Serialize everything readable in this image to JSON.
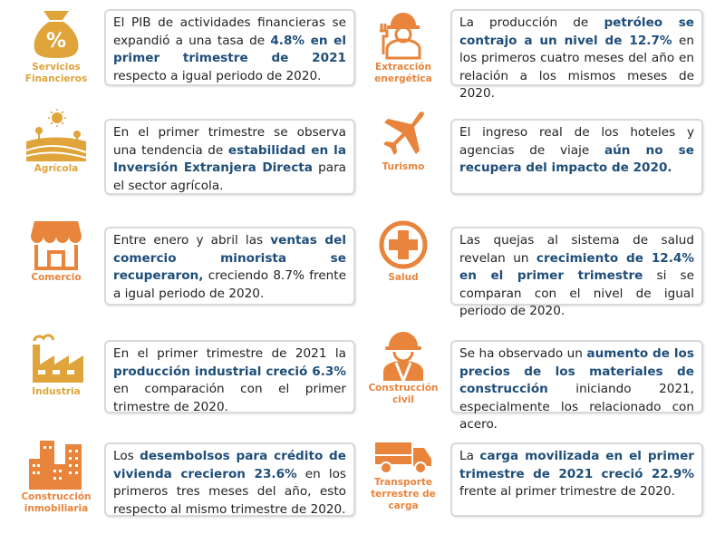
{
  "colors": {
    "gold": "#dfa43a",
    "orange": "#e8843c",
    "highlight": "#1f4e79",
    "card_border": "#d6d9de"
  },
  "cards": [
    {
      "sector": [
        "Servicios",
        "Financieros"
      ],
      "icon": "money-bag-percent-icon",
      "color": "gold",
      "text": [
        [
          "El PIB de actividades financieras se expandió a una tasa de ",
          false
        ],
        [
          "4.8% en el primer trimestre de 2021",
          true
        ],
        [
          " respecto a igual periodo de 2020.",
          false
        ]
      ]
    },
    {
      "sector": [
        "Extracción",
        "energética"
      ],
      "icon": "oil-worker-icon",
      "color": "orange",
      "text": [
        [
          "La producción de ",
          false
        ],
        [
          "petróleo se contrajo a un nivel de 12.7%",
          true
        ],
        [
          " en los primeros cuatro meses del año en relación a los mismos meses de 2020.",
          false
        ]
      ]
    },
    {
      "sector": [
        "Agrícola"
      ],
      "icon": "farm-field-sun-icon",
      "color": "gold",
      "text": [
        [
          "En el primer trimestre se observa una tendencia de ",
          false
        ],
        [
          "estabilidad en la Inversión Extranjera Directa",
          true
        ],
        [
          " para el sector agrícola.",
          false
        ]
      ]
    },
    {
      "sector": [
        "Turismo"
      ],
      "icon": "airplane-icon",
      "color": "orange",
      "text": [
        [
          "El ingreso real de los hoteles y agencias de viaje ",
          false
        ],
        [
          "aún no se recupera del impacto de 2020.",
          true
        ]
      ]
    },
    {
      "sector": [
        "Comercio"
      ],
      "icon": "storefront-icon",
      "color": "orange",
      "text": [
        [
          "Entre enero y abril las ",
          false
        ],
        [
          "ventas del comercio minorista se recuperaron,",
          true
        ],
        [
          " creciendo 8.7% frente a igual periodo de 2020.",
          false
        ]
      ]
    },
    {
      "sector": [
        "Salud"
      ],
      "icon": "medical-cross-icon",
      "color": "orange",
      "text": [
        [
          "Las quejas al sistema de salud revelan un ",
          false
        ],
        [
          "crecimiento de 12.4% en el primer trimestre",
          true
        ],
        [
          " si se comparan con el nivel de igual periodo de 2020.",
          false
        ]
      ]
    },
    {
      "sector": [
        "Industria"
      ],
      "icon": "factory-icon",
      "color": "gold",
      "text": [
        [
          "En el primer trimestre de 2021 la ",
          false
        ],
        [
          "producción industrial creció 6.3%",
          true
        ],
        [
          " en comparación con el primer trimestre de 2020.",
          false
        ]
      ]
    },
    {
      "sector": [
        "Construcción",
        "civil"
      ],
      "icon": "construction-worker-icon",
      "color": "orange",
      "text": [
        [
          "Se ha observado un ",
          false
        ],
        [
          "aumento de los precios de los materiales de construcción",
          true
        ],
        [
          " iniciando 2021, especialmente los relacionado con acero.",
          false
        ]
      ]
    },
    {
      "sector": [
        "Construcción",
        "inmobiliaria"
      ],
      "icon": "buildings-icon",
      "color": "orange",
      "text": [
        [
          "Los ",
          false
        ],
        [
          "desembolsos para crédito de vivienda crecieron 23.6%",
          true
        ],
        [
          " en los primeros tres meses del año, esto respecto al mismo trimestre de 2020.",
          false
        ]
      ]
    },
    {
      "sector": [
        "Transporte",
        "terrestre de",
        "carga"
      ],
      "icon": "truck-icon",
      "color": "orange",
      "text": [
        [
          "La ",
          false
        ],
        [
          "carga movilizada en el primer trimestre de 2021 creció 22.9%",
          true
        ],
        [
          " frente al primer trimestre de 2020.",
          false
        ]
      ]
    }
  ]
}
